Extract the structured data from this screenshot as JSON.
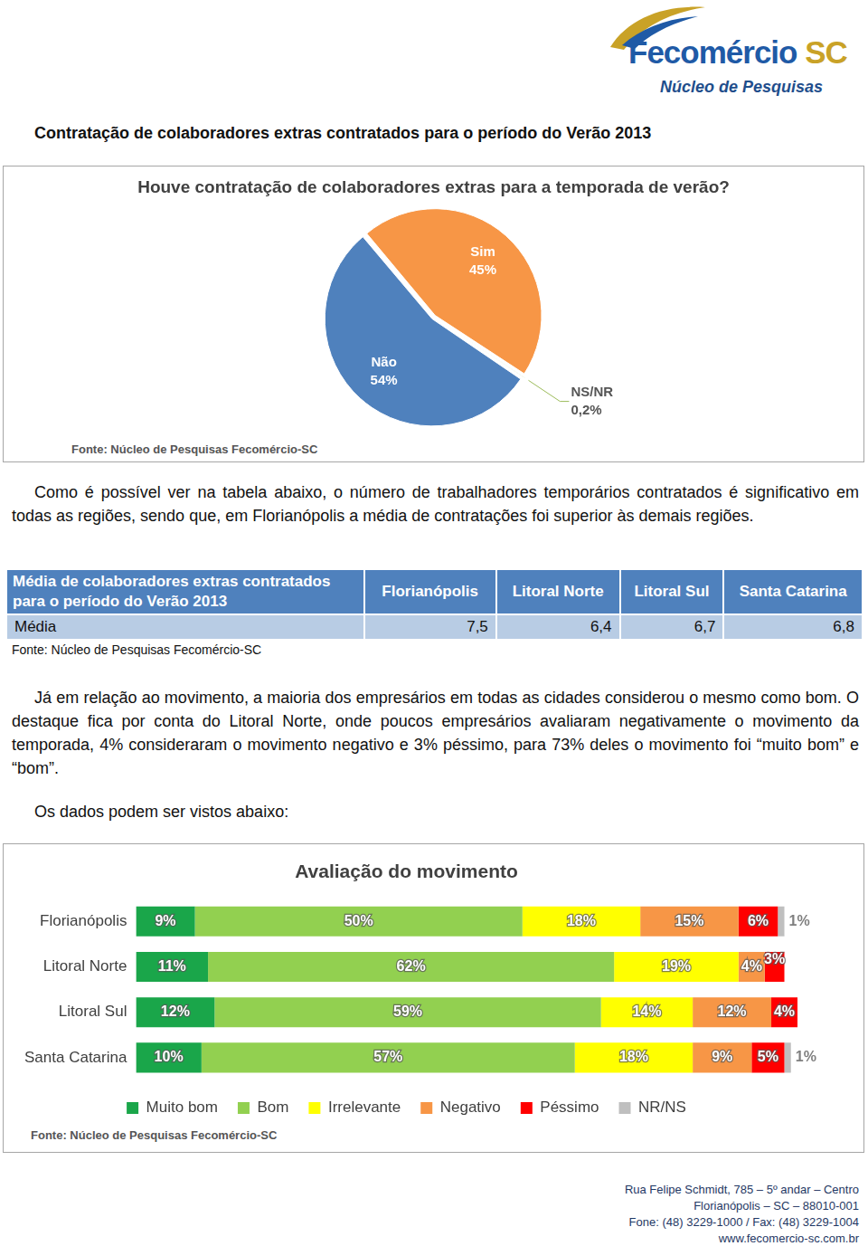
{
  "header": {
    "brand": "Fecomércio SC",
    "subtitle": "Núcleo de Pesquisas"
  },
  "heading": "Contratação de colaboradores extras contratados para o período do Verão 2013",
  "chart_data": [
    {
      "type": "pie",
      "title": "Houve contratação de colaboradores extras para a temporada de verão?",
      "categories": [
        "Sim",
        "NS/NR",
        "Não"
      ],
      "values": [
        45,
        0.2,
        54
      ],
      "value_labels": [
        "45%",
        "0,2%",
        "54%"
      ],
      "colors": [
        "#f79646",
        "#9bbb59",
        "#4f81bd"
      ],
      "data_labels": true,
      "source": "Fonte: Núcleo de Pesquisas Fecomércio-SC"
    },
    {
      "type": "bar",
      "title": "Avaliação do movimento",
      "orientation": "horizontal",
      "stacked": true,
      "data_labels": true,
      "tick_labels": "y",
      "legend": "bottom",
      "grid": false,
      "categories": [
        "Florianópolis",
        "Litoral Norte",
        "Litoral Sul",
        "Santa Catarina"
      ],
      "xlim": [
        0,
        101
      ],
      "series": [
        {
          "name": "Muito bom",
          "color": "#1aa64a",
          "values": [
            9,
            11,
            12,
            10
          ],
          "value_labels": [
            "9%",
            "11%",
            "12%",
            "10%"
          ]
        },
        {
          "name": "Bom",
          "color": "#92d050",
          "values": [
            50,
            62,
            59,
            57
          ],
          "value_labels": [
            "50%",
            "62%",
            "59%",
            "57%"
          ]
        },
        {
          "name": "Irrelevante",
          "color": "#ffff00",
          "values": [
            18,
            19,
            14,
            18
          ],
          "value_labels": [
            "18%",
            "19%",
            "14%",
            "18%"
          ]
        },
        {
          "name": "Negativo",
          "color": "#f79646",
          "values": [
            15,
            4,
            12,
            9
          ],
          "value_labels": [
            "15%",
            "4%",
            "12%",
            "9%"
          ]
        },
        {
          "name": "Péssimo",
          "color": "#ff0000",
          "values": [
            6,
            3,
            4,
            5
          ],
          "value_labels": [
            "6%",
            "3%",
            "4%",
            "5%"
          ]
        },
        {
          "name": "NR/NS",
          "color": "#bfbfbf",
          "values": [
            1,
            null,
            null,
            1
          ],
          "value_labels": [
            "1%",
            null,
            null,
            "1%"
          ]
        }
      ],
      "source": "Fonte: Núcleo de Pesquisas Fecomércio-SC"
    }
  ],
  "paragraphs": [
    "Como é possível ver na tabela abaixo, o número de trabalhadores temporários contratados é significativo em todas as regiões, sendo que, em Florianópolis a média de contratações foi superior às demais regiões.",
    "Já em relação ao movimento, a maioria dos empresários em todas as cidades considerou o mesmo como bom. O destaque fica por conta do Litoral Norte, onde poucos empresários avaliaram negativamente o movimento da temporada, 4% consideraram o movimento negativo e 3% péssimo, para 73% deles o movimento foi “muito bom” e “bom”.",
    "Os dados podem ser vistos abaixo:"
  ],
  "table": {
    "title": "Média de colaboradores extras contratados para o período do Verão 2013",
    "columns": [
      "Florianópolis",
      "Litoral Norte",
      "Litoral Sul",
      "Santa Catarina"
    ],
    "rows": [
      [
        "Média",
        "7,5",
        "6,4",
        "6,7",
        "6,8"
      ]
    ],
    "source": "Fonte: Núcleo de Pesquisas Fecomércio-SC"
  },
  "footer": [
    "Rua Felipe Schmidt, 785 – 5º andar – Centro",
    "Florianópolis – SC – 88010-001",
    "Fone: (48) 3229-1000 / Fax: (48) 3229-1004",
    "www.fecomercio-sc.com.br"
  ]
}
